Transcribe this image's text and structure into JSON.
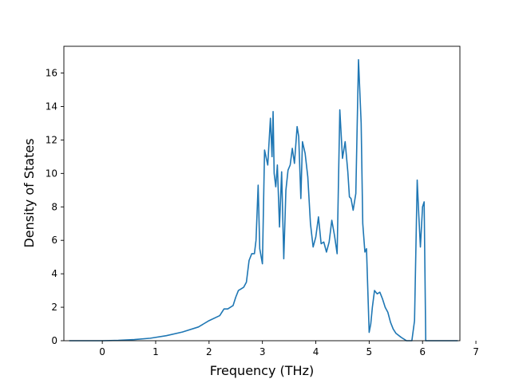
{
  "chart_data": {
    "type": "line",
    "title": "",
    "xlabel": "Frequency (THz)",
    "ylabel": "Density of States",
    "xlim": [
      -0.72,
      6.7
    ],
    "ylim": [
      0,
      17.6
    ],
    "xticks": [
      0,
      1,
      2,
      3,
      4,
      5,
      6,
      7
    ],
    "yticks": [
      0,
      2,
      4,
      6,
      8,
      10,
      12,
      14,
      16
    ],
    "grid": false,
    "legend": "none",
    "series": [
      {
        "color": "#1f77b4",
        "x": [
          -0.62,
          -0.3,
          0.0,
          0.3,
          0.6,
          0.9,
          1.2,
          1.5,
          1.8,
          2.0,
          2.2,
          2.28,
          2.35,
          2.45,
          2.5,
          2.55,
          2.6,
          2.65,
          2.7,
          2.75,
          2.8,
          2.85,
          2.88,
          2.92,
          2.95,
          3.0,
          3.04,
          3.1,
          3.15,
          3.18,
          3.2,
          3.22,
          3.25,
          3.28,
          3.32,
          3.36,
          3.4,
          3.44,
          3.48,
          3.52,
          3.56,
          3.6,
          3.65,
          3.68,
          3.72,
          3.75,
          3.8,
          3.85,
          3.9,
          3.95,
          4.0,
          4.05,
          4.1,
          4.15,
          4.2,
          4.25,
          4.3,
          4.35,
          4.4,
          4.45,
          4.5,
          4.55,
          4.6,
          4.63,
          4.66,
          4.7,
          4.75,
          4.8,
          4.85,
          4.88,
          4.92,
          4.95,
          5.0,
          5.03,
          5.06,
          5.1,
          5.15,
          5.2,
          5.25,
          5.3,
          5.35,
          5.4,
          5.45,
          5.5,
          5.6,
          5.7,
          5.8,
          5.85,
          5.9,
          5.93,
          5.96,
          6.0,
          6.03,
          6.06,
          6.08,
          6.1,
          6.3,
          6.66
        ],
        "y": [
          0.0,
          0.0,
          0.0,
          0.02,
          0.07,
          0.15,
          0.3,
          0.52,
          0.82,
          1.2,
          1.5,
          1.9,
          1.9,
          2.1,
          2.6,
          3.0,
          3.1,
          3.2,
          3.5,
          4.8,
          5.2,
          5.2,
          6.0,
          9.3,
          5.5,
          4.6,
          11.4,
          10.5,
          13.3,
          11.0,
          13.7,
          10.0,
          9.2,
          10.5,
          6.8,
          10.1,
          4.9,
          9.0,
          10.2,
          10.5,
          11.5,
          10.6,
          12.8,
          12.2,
          8.5,
          11.9,
          11.2,
          9.8,
          7.0,
          5.6,
          6.2,
          7.4,
          5.8,
          5.9,
          5.3,
          5.9,
          7.2,
          6.3,
          5.2,
          13.8,
          10.9,
          11.9,
          10.1,
          8.6,
          8.5,
          7.8,
          8.8,
          16.8,
          13.0,
          7.0,
          5.3,
          5.5,
          0.5,
          1.0,
          2.0,
          3.0,
          2.8,
          2.9,
          2.5,
          2.0,
          1.7,
          1.1,
          0.7,
          0.45,
          0.2,
          0.0,
          0.0,
          1.2,
          9.6,
          7.5,
          5.6,
          8.0,
          8.3,
          0.0,
          0.0,
          0.0,
          0.0,
          0.0
        ]
      }
    ]
  }
}
